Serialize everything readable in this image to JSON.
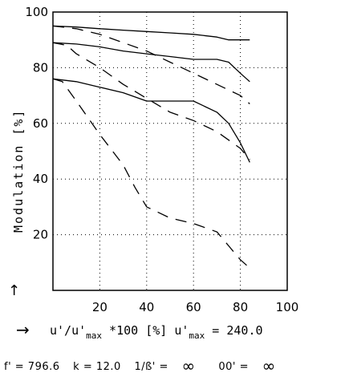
{
  "chart_data": {
    "type": "line",
    "title": "",
    "ylabel": "Modulation [%]",
    "xlabel": {
      "text": "u'/u'max *100 [%]",
      "umax_label": "u'max = 240.0",
      "umax_value": 240.0
    },
    "xlim": [
      0,
      100
    ],
    "ylim": [
      0,
      100
    ],
    "xticks": [
      20,
      40,
      60,
      80,
      100
    ],
    "yticks": [
      20,
      40,
      60,
      80,
      100
    ],
    "grid": "dotted",
    "series": [
      {
        "style": "solid",
        "x": [
          0,
          10,
          20,
          30,
          40,
          50,
          60,
          70,
          75,
          80,
          84
        ],
        "y": [
          95,
          94.6,
          94,
          93.5,
          93,
          92.5,
          92,
          91,
          90,
          90,
          90
        ]
      },
      {
        "style": "dashed",
        "x": [
          0,
          10,
          20,
          30,
          40,
          50,
          60,
          70,
          80,
          84
        ],
        "y": [
          95,
          94,
          92,
          89,
          86,
          82,
          78,
          74,
          70,
          67
        ]
      },
      {
        "style": "solid",
        "x": [
          0,
          10,
          20,
          30,
          40,
          50,
          60,
          70,
          75,
          80,
          84
        ],
        "y": [
          89,
          88.5,
          87.5,
          86,
          85,
          84,
          83,
          83,
          82,
          78,
          75
        ]
      },
      {
        "style": "dashed",
        "x": [
          0,
          6,
          10,
          20,
          30,
          40,
          50,
          60,
          70,
          80,
          84
        ],
        "y": [
          89,
          88,
          85,
          80,
          74,
          69,
          64,
          61,
          57,
          51,
          47
        ]
      },
      {
        "style": "solid",
        "x": [
          0,
          10,
          20,
          30,
          40,
          50,
          60,
          70,
          75,
          80,
          84
        ],
        "y": [
          76,
          75,
          73,
          71,
          68,
          68,
          68,
          64,
          60,
          53,
          46
        ]
      },
      {
        "style": "dashed",
        "x": [
          0,
          4,
          10,
          20,
          30,
          35,
          40,
          50,
          60,
          70,
          75,
          80,
          84
        ],
        "y": [
          76,
          75,
          68,
          56,
          45,
          37,
          30,
          26,
          24,
          21,
          16,
          11,
          8
        ]
      }
    ],
    "annotations": {
      "y_arrow": "↑",
      "x_arrow": "→"
    }
  },
  "params": {
    "f": "f' = 796.6",
    "k": "k = 12.0",
    "beta_label": "1/ß' =",
    "beta_value": "∞",
    "theta_label": "00' =",
    "theta_value": "∞"
  }
}
